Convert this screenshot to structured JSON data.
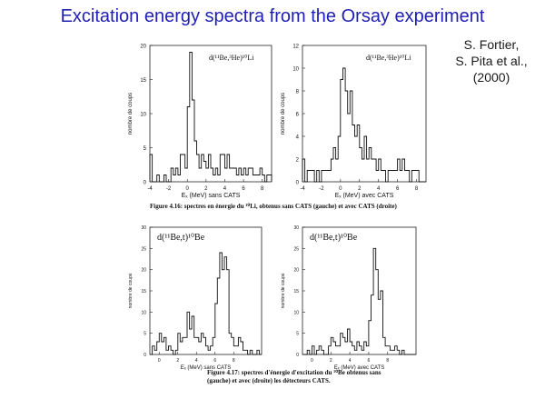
{
  "title": "Excitation energy spectra from the Orsay experiment",
  "credit": {
    "line1": "S. Fortier,",
    "line2": "S. Pita et al.,",
    "line3": "(2000)"
  },
  "figure_4_16_caption": "Figure 4.16: spectres en énergie du ¹⁰Li, obtenus sans CATS (gauche) et avec CATS (droite)",
  "figure_4_17_caption_line1": "Figure 4.17: spectres d'énergie d'excitation du ¹⁰Be obtenus sans",
  "figure_4_17_caption_line2": "(gauche) et avec (droite) les détecteurs CATS.",
  "chart_data": [
    {
      "type": "bar",
      "title": "d(¹¹Be,³He)¹⁰Li",
      "xlabel": "Eₓ (MeV) sans CATS",
      "ylabel": "nombre de coups",
      "xlim": [
        -4,
        9
      ],
      "ylim": [
        0,
        20
      ],
      "xticks": [
        -4,
        -2,
        0,
        2,
        4,
        6,
        8
      ],
      "yticks": [
        0,
        5,
        10,
        15,
        20
      ],
      "bin_width": 0.25,
      "x": [
        -4.0,
        -3.75,
        -3.5,
        -3.25,
        -3.0,
        -2.75,
        -2.5,
        -2.25,
        -2.0,
        -1.75,
        -1.5,
        -1.25,
        -1.0,
        -0.75,
        -0.5,
        -0.25,
        0.0,
        0.25,
        0.5,
        0.75,
        1.0,
        1.25,
        1.5,
        1.75,
        2.0,
        2.25,
        2.5,
        2.75,
        3.0,
        3.25,
        3.5,
        3.75,
        4.0,
        4.25,
        4.5,
        4.75,
        5.0,
        5.25,
        5.5,
        5.75,
        6.0,
        6.25,
        6.5,
        6.75,
        7.0,
        7.25,
        7.5,
        7.75,
        8.0,
        8.25,
        8.5,
        8.75
      ],
      "values": [
        4,
        0,
        0,
        1,
        0,
        0,
        1,
        0,
        0,
        2,
        1,
        2,
        1,
        4,
        4,
        2,
        11,
        19,
        12,
        6,
        4,
        2,
        4,
        3,
        2,
        4,
        2,
        1,
        2,
        1,
        4,
        4,
        2,
        4,
        2,
        2,
        2,
        1,
        2,
        1,
        2,
        1,
        2,
        2,
        1,
        1,
        1,
        2,
        1,
        0,
        1,
        1
      ]
    },
    {
      "type": "bar",
      "title": "d(¹¹Be,³He)¹⁰Li",
      "xlabel": "Eₓ (MeV) avec CATS",
      "ylabel": "nombre de coups",
      "xlim": [
        -4,
        9
      ],
      "ylim": [
        0,
        12
      ],
      "xticks": [
        -4,
        -2,
        0,
        2,
        4,
        6,
        8
      ],
      "yticks": [
        0,
        2,
        4,
        6,
        8,
        10,
        12
      ],
      "bin_width": 0.25,
      "x": [
        -4.0,
        -3.75,
        -3.5,
        -3.25,
        -3.0,
        -2.75,
        -2.5,
        -2.25,
        -2.0,
        -1.75,
        -1.5,
        -1.25,
        -1.0,
        -0.75,
        -0.5,
        -0.25,
        0.0,
        0.25,
        0.5,
        0.75,
        1.0,
        1.25,
        1.5,
        1.75,
        2.0,
        2.25,
        2.5,
        2.75,
        3.0,
        3.25,
        3.5,
        3.75,
        4.0,
        4.25,
        4.5,
        4.75,
        5.0,
        5.25,
        5.5,
        5.75,
        6.0,
        6.25,
        6.5,
        6.75,
        7.0,
        7.25,
        7.5,
        7.75,
        8.0,
        8.25,
        8.5,
        8.75
      ],
      "values": [
        2,
        0,
        1,
        1,
        1,
        0,
        1,
        0,
        1,
        1,
        1,
        1,
        2,
        3,
        2,
        4,
        9,
        10,
        8,
        6,
        8,
        5,
        4,
        5,
        3,
        2,
        4,
        2,
        3,
        2,
        2,
        1,
        2,
        1,
        1,
        0,
        1,
        1,
        1,
        1,
        2,
        1,
        2,
        1,
        1,
        0,
        1,
        1,
        1,
        0,
        0,
        0
      ]
    },
    {
      "type": "bar",
      "title": "d(¹¹Be,t)¹⁰Be",
      "xlabel": "Eₓ (MeV) sans CATS",
      "ylabel": "nombre de coups",
      "xlim": [
        -1,
        11
      ],
      "ylim": [
        0,
        30
      ],
      "xticks": [
        0,
        2,
        4,
        6,
        8
      ],
      "yticks": [
        0,
        5,
        10,
        15,
        20,
        25,
        30
      ],
      "bin_width": 0.25,
      "x": [
        -1.0,
        -0.75,
        -0.5,
        -0.25,
        0.0,
        0.25,
        0.5,
        0.75,
        1.0,
        1.25,
        1.5,
        1.75,
        2.0,
        2.25,
        2.5,
        2.75,
        3.0,
        3.25,
        3.5,
        3.75,
        4.0,
        4.25,
        4.5,
        4.75,
        5.0,
        5.25,
        5.5,
        5.75,
        6.0,
        6.25,
        6.5,
        6.75,
        7.0,
        7.25,
        7.5,
        7.75,
        8.0,
        8.25,
        8.5,
        8.75,
        9.0,
        9.25,
        9.5,
        9.75,
        10.0,
        10.25,
        10.5,
        10.75
      ],
      "values": [
        0,
        2,
        1,
        3,
        5,
        3,
        4,
        1,
        2,
        1,
        0,
        1,
        5,
        3,
        4,
        4,
        10,
        6,
        9,
        4,
        4,
        3,
        5,
        4,
        2,
        1,
        2,
        4,
        12,
        18,
        24,
        20,
        23,
        20,
        5,
        4,
        2,
        2,
        4,
        3,
        1,
        1,
        0,
        1,
        0,
        0,
        1,
        0
      ]
    },
    {
      "type": "bar",
      "title": "d(¹¹Be,t)¹⁰Be",
      "xlabel": "Eₓ (MeV) avec CATS",
      "ylabel": "nombre de coups",
      "xlim": [
        -1,
        11
      ],
      "ylim": [
        0,
        30
      ],
      "xticks": [
        0,
        2,
        4,
        6,
        8
      ],
      "yticks": [
        0,
        5,
        10,
        15,
        20,
        25,
        30
      ],
      "bin_width": 0.25,
      "x": [
        -1.0,
        -0.75,
        -0.5,
        -0.25,
        0.0,
        0.25,
        0.5,
        0.75,
        1.0,
        1.25,
        1.5,
        1.75,
        2.0,
        2.25,
        2.5,
        2.75,
        3.0,
        3.25,
        3.5,
        3.75,
        4.0,
        4.25,
        4.5,
        4.75,
        5.0,
        5.25,
        5.5,
        5.75,
        6.0,
        6.25,
        6.5,
        6.75,
        7.0,
        7.25,
        7.5,
        7.75,
        8.0,
        8.25,
        8.5,
        8.75,
        9.0,
        9.25,
        9.5,
        9.75,
        10.0,
        10.25,
        10.5,
        10.75
      ],
      "values": [
        0,
        0,
        1,
        0,
        2,
        0,
        1,
        2,
        1,
        0,
        0,
        2,
        4,
        3,
        2,
        2,
        5,
        4,
        3,
        6,
        3,
        2,
        1,
        3,
        2,
        1,
        3,
        2,
        8,
        14,
        25,
        20,
        13,
        15,
        4,
        2,
        2,
        1,
        1,
        2,
        1,
        0,
        1,
        0,
        0,
        0,
        0,
        0
      ]
    }
  ]
}
